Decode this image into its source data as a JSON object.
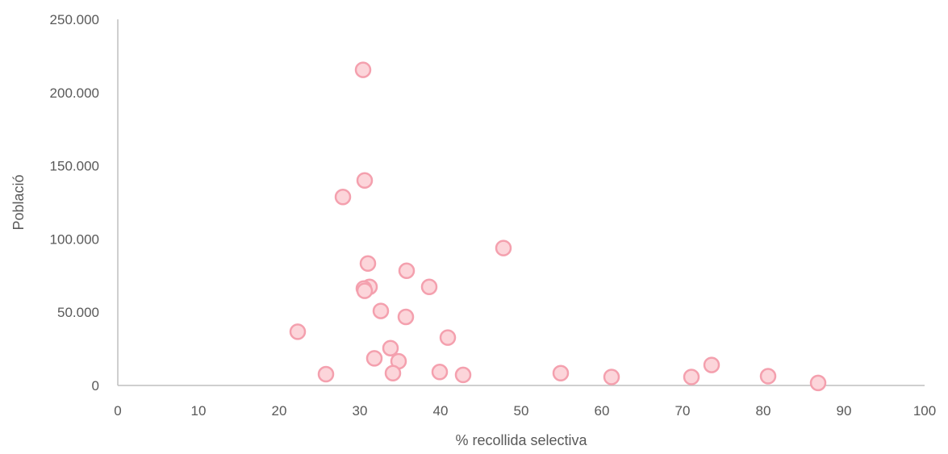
{
  "chart_data": {
    "type": "scatter",
    "title": "",
    "xlabel": "% recollida selectiva",
    "ylabel": "Població",
    "xlim": [
      0,
      100
    ],
    "ylim": [
      0,
      250000
    ],
    "xticks": [
      0,
      10,
      20,
      30,
      40,
      50,
      60,
      70,
      80,
      90,
      100
    ],
    "yticks": [
      0,
      50000,
      100000,
      150000,
      200000,
      250000
    ],
    "xtick_labels": [
      "0",
      "10",
      "20",
      "30",
      "40",
      "50",
      "60",
      "70",
      "80",
      "90",
      "100"
    ],
    "ytick_labels": [
      "0",
      "50.000",
      "100.000",
      "150.000",
      "200.000",
      "250.000"
    ],
    "grid": false,
    "legend": false,
    "marker_fill": "#FCD5DA",
    "marker_edge": "#F4A0AE",
    "axis_color": "#BFBFBF",
    "series": [
      {
        "points": [
          {
            "x": 30.4,
            "y": 215500
          },
          {
            "x": 30.6,
            "y": 140000
          },
          {
            "x": 27.9,
            "y": 128700
          },
          {
            "x": 47.8,
            "y": 93800
          },
          {
            "x": 31.0,
            "y": 83300
          },
          {
            "x": 35.8,
            "y": 78300
          },
          {
            "x": 38.6,
            "y": 67300
          },
          {
            "x": 31.2,
            "y": 67300
          },
          {
            "x": 30.5,
            "y": 66200
          },
          {
            "x": 30.6,
            "y": 64600
          },
          {
            "x": 32.6,
            "y": 50900
          },
          {
            "x": 35.7,
            "y": 46800
          },
          {
            "x": 22.3,
            "y": 36700
          },
          {
            "x": 40.9,
            "y": 32700
          },
          {
            "x": 33.8,
            "y": 25500
          },
          {
            "x": 31.8,
            "y": 18500
          },
          {
            "x": 34.8,
            "y": 16500
          },
          {
            "x": 73.6,
            "y": 14000
          },
          {
            "x": 39.9,
            "y": 9200
          },
          {
            "x": 54.9,
            "y": 8400
          },
          {
            "x": 34.1,
            "y": 8400
          },
          {
            "x": 25.8,
            "y": 7700
          },
          {
            "x": 42.8,
            "y": 7200
          },
          {
            "x": 80.6,
            "y": 6300
          },
          {
            "x": 61.2,
            "y": 5800
          },
          {
            "x": 71.1,
            "y": 5800
          },
          {
            "x": 86.8,
            "y": 1700
          }
        ]
      }
    ]
  }
}
